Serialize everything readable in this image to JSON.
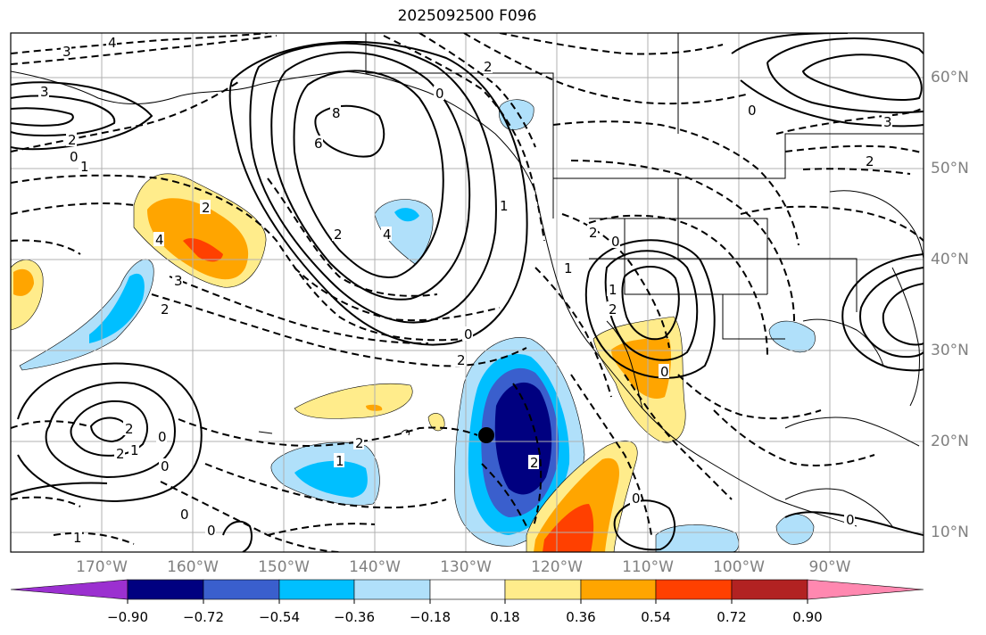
{
  "title": "2025092500 F096",
  "lat_labels": [
    "60°N",
    "50°N",
    "40°N",
    "30°N",
    "20°N",
    "10°N"
  ],
  "lon_labels": [
    "170°W",
    "160°W",
    "150°W",
    "140°W",
    "130°W",
    "120°W",
    "110°W",
    "100°W",
    "90°W"
  ],
  "colorbar": {
    "tick_labels": [
      "−0.90",
      "−0.72",
      "−0.54",
      "−0.36",
      "−0.18",
      "0.18",
      "0.36",
      "0.54",
      "0.72",
      "0.90"
    ],
    "colors": [
      "#9b30d0",
      "#000080",
      "#3a5fcd",
      "#00bfff",
      "#b0e0fa",
      "#ffffff",
      "#ffec8b",
      "#ffa500",
      "#ff4000",
      "#b22222",
      "#ff88b0"
    ]
  },
  "contour_labels": [
    "3",
    "4",
    "3",
    "2",
    "1",
    "0",
    "8",
    "6",
    "4",
    "2",
    "2",
    "4",
    "3",
    "2",
    "1",
    "0",
    "2",
    "2",
    "0",
    "1",
    "0",
    "2",
    "0",
    "1",
    "2",
    "0",
    "2",
    "0",
    "1",
    "2",
    "0",
    "1",
    "2",
    "0",
    "2",
    "0",
    "0",
    "3",
    "2",
    "0",
    "1"
  ],
  "marker": "storm-center"
}
